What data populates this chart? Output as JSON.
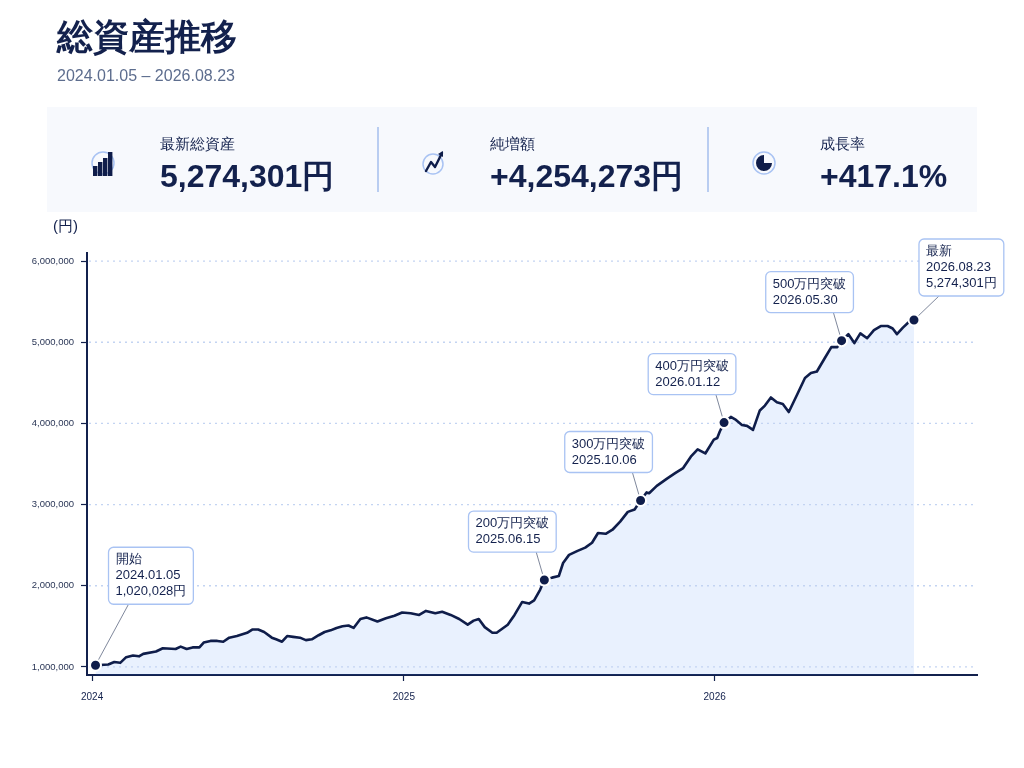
{
  "chart_data": {
    "type": "area",
    "title": "総資産推移",
    "subtitle": "2024.01.05 – 2026.08.23",
    "ylabel": "(円)",
    "annotations": [
      "最新総資産",
      "5,274,301円",
      "純増額",
      "+4,254,273円",
      "成長率",
      "+417.1%",
      {
        "text": "開始\n2024.01.05\n1,020,028円",
        "x": "2024-01-05",
        "y": 1020028
      },
      {
        "text": "200万円突破\n2025.06.15",
        "x": "2025-06-15",
        "y": 2070000
      },
      {
        "text": "300万円突破\n2025.10.06",
        "x": "2025-10-06",
        "y": 3050000
      },
      {
        "text": "400万円突破\n2026.01.12",
        "x": "2026-01-12",
        "y": 4010000
      },
      {
        "text": "500万円突破\n2026.05.30",
        "x": "2026-05-30",
        "y": 5020000
      },
      {
        "text": "最新\n2026.08.23\n5,274,301円",
        "x": "2026-08-23",
        "y": 5274301
      }
    ],
    "x": [
      "2024-01-05",
      "2024-01-20",
      "2024-01-27",
      "2024-02-03",
      "2024-02-10",
      "2024-02-18",
      "2024-02-25",
      "2024-03-01",
      "2024-03-16",
      "2024-03-24",
      "2024-04-08",
      "2024-04-14",
      "2024-04-21",
      "2024-04-28",
      "2024-05-06",
      "2024-05-11",
      "2024-05-19",
      "2024-05-27",
      "2024-06-03",
      "2024-06-10",
      "2024-06-19",
      "2024-07-01",
      "2024-07-07",
      "2024-07-14",
      "2024-07-21",
      "2024-07-30",
      "2024-08-04",
      "2024-08-11",
      "2024-08-17",
      "2024-08-24",
      "2024-09-01",
      "2024-09-08",
      "2024-09-15",
      "2024-09-23",
      "2024-09-30",
      "2024-10-07",
      "2024-10-14",
      "2024-10-21",
      "2024-10-28",
      "2024-11-03",
      "2024-11-11",
      "2024-11-18",
      "2024-12-01",
      "2024-12-11",
      "2024-12-21",
      "2024-12-30",
      "2025-01-09",
      "2025-01-19",
      "2025-01-27",
      "2025-02-07",
      "2025-02-15",
      "2025-02-25",
      "2025-03-07",
      "2025-03-17",
      "2025-03-24",
      "2025-03-30",
      "2025-04-06",
      "2025-04-15",
      "2025-04-20",
      "2025-05-03",
      "2025-05-11",
      "2025-05-20",
      "2025-05-28",
      "2025-06-03",
      "2025-06-10",
      "2025-06-15",
      "2025-06-24",
      "2025-07-02",
      "2025-07-07",
      "2025-07-14",
      "2025-07-24",
      "2025-08-02",
      "2025-08-10",
      "2025-08-17",
      "2025-08-26",
      "2025-09-03",
      "2025-09-12",
      "2025-09-21",
      "2025-09-29",
      "2025-10-06",
      "2025-10-13",
      "2025-10-16",
      "2025-10-25",
      "2025-11-06",
      "2025-11-16",
      "2025-11-25",
      "2025-12-04",
      "2025-12-12",
      "2025-12-21",
      "2025-12-31",
      "2026-01-04",
      "2026-01-07",
      "2026-01-12",
      "2026-01-20",
      "2026-01-25",
      "2026-02-02",
      "2026-02-08",
      "2026-02-15",
      "2026-02-23",
      "2026-03-01",
      "2026-03-08",
      "2026-03-15",
      "2026-03-22",
      "2026-03-29",
      "2026-04-08",
      "2026-04-17",
      "2026-04-24",
      "2026-05-01",
      "2026-05-10",
      "2026-05-18",
      "2026-05-25",
      "2026-05-30",
      "2026-06-07",
      "2026-06-14",
      "2026-06-21",
      "2026-06-29",
      "2026-07-07",
      "2026-07-15",
      "2026-07-23",
      "2026-07-29",
      "2026-08-03",
      "2026-08-10",
      "2026-08-17",
      "2026-08-23"
    ],
    "values": [
      1020028,
      1030000,
      1060000,
      1050000,
      1120000,
      1140000,
      1130000,
      1160000,
      1190000,
      1230000,
      1220000,
      1250000,
      1220000,
      1240000,
      1240000,
      1300000,
      1320000,
      1320000,
      1310000,
      1360000,
      1380000,
      1420000,
      1460000,
      1460000,
      1430000,
      1360000,
      1340000,
      1310000,
      1380000,
      1370000,
      1360000,
      1330000,
      1340000,
      1390000,
      1430000,
      1450000,
      1480000,
      1500000,
      1510000,
      1480000,
      1590000,
      1610000,
      1560000,
      1600000,
      1630000,
      1670000,
      1660000,
      1640000,
      1690000,
      1660000,
      1680000,
      1640000,
      1590000,
      1520000,
      1570000,
      1590000,
      1490000,
      1420000,
      1420000,
      1520000,
      1640000,
      1800000,
      1780000,
      1820000,
      1950000,
      2070000,
      2100000,
      2120000,
      2280000,
      2380000,
      2430000,
      2470000,
      2530000,
      2650000,
      2640000,
      2690000,
      2790000,
      2910000,
      2940000,
      3050000,
      3150000,
      3140000,
      3230000,
      3320000,
      3390000,
      3450000,
      3590000,
      3680000,
      3630000,
      3800000,
      3820000,
      3900000,
      4010000,
      4080000,
      4050000,
      3980000,
      3970000,
      3920000,
      4160000,
      4220000,
      4320000,
      4260000,
      4240000,
      4140000,
      4360000,
      4560000,
      4620000,
      4640000,
      4800000,
      4940000,
      4940000,
      5020000,
      5100000,
      4990000,
      5110000,
      5050000,
      5150000,
      5200000,
      5200000,
      5170000,
      5100000,
      5180000,
      5250000,
      5274301
    ],
    "color": "#0f1d4a",
    "xlim": [
      "2023-12-26",
      "2026-11-05"
    ],
    "xticks": [
      "2024",
      "2025",
      "2026"
    ],
    "ylim": [
      900000,
      6100000
    ],
    "yticks": [
      {
        "value": 1000000,
        "label": "1,000,000"
      },
      {
        "value": 2000000,
        "label": "2,000,000"
      },
      {
        "value": 3000000,
        "label": "3,000,000"
      },
      {
        "value": 4000000,
        "label": "4,000,000"
      },
      {
        "value": 5000000,
        "label": "5,000,000"
      },
      {
        "value": 6000000,
        "label": "6,000,000"
      }
    ],
    "grid": "y"
  }
}
